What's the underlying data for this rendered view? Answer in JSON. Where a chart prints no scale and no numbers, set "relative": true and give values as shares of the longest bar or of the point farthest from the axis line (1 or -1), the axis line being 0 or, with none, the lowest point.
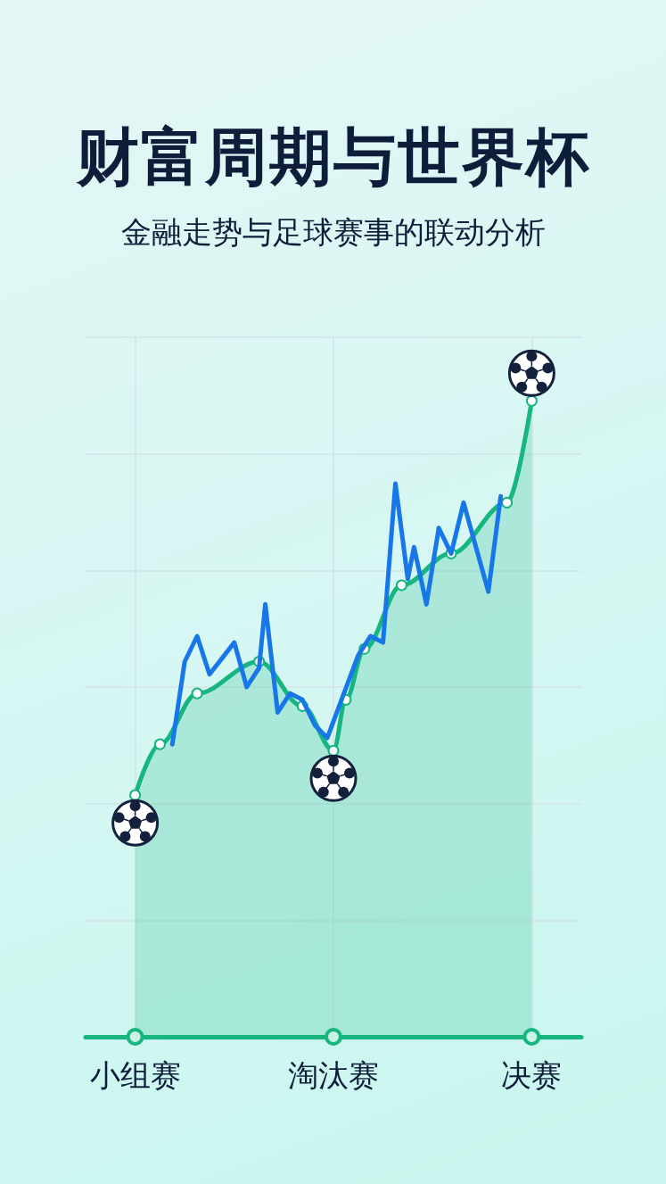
{
  "chart_data": {
    "type": "line",
    "title": "财富周期与世界杯",
    "subtitle": "金融走势与足球赛事的联动分析",
    "relative": true,
    "grid": true,
    "categories": [
      null,
      null,
      null,
      null,
      null,
      null,
      null,
      null,
      "小组赛",
      null,
      null,
      null,
      null,
      null,
      null,
      null,
      null,
      null,
      null,
      null,
      null,
      null,
      null,
      null,
      null,
      null,
      null,
      null,
      null,
      null,
      null,
      null,
      null,
      null,
      null,
      null,
      null,
      null,
      null,
      null,
      "淘汰赛",
      null,
      null,
      null,
      null,
      null,
      null,
      null,
      null,
      null,
      null,
      null,
      null,
      null,
      null,
      null,
      null,
      null,
      null,
      null,
      null,
      null,
      null,
      null,
      null,
      null,
      null,
      null,
      null,
      null,
      null,
      null,
      "决赛",
      null,
      null,
      null,
      null,
      null,
      null,
      null,
      null
    ],
    "series": [
      {
        "type": "area",
        "color": "#17b57f",
        "marker": "circle",
        "values": [
          null,
          null,
          null,
          null,
          null,
          null,
          null,
          null,
          0.38,
          null,
          null,
          null,
          0.46,
          null,
          null,
          null,
          null,
          null,
          0.54,
          null,
          null,
          null,
          null,
          null,
          null,
          null,
          null,
          null,
          0.59,
          null,
          null,
          null,
          null,
          null,
          null,
          0.52,
          null,
          null,
          null,
          null,
          0.45,
          null,
          0.53,
          null,
          null,
          0.61,
          null,
          null,
          null,
          null,
          null,
          0.71,
          null,
          null,
          null,
          null,
          null,
          null,
          null,
          0.76,
          null,
          null,
          null,
          null,
          null,
          null,
          null,
          null,
          0.84,
          null,
          null,
          null,
          1,
          null,
          null,
          null,
          null,
          null,
          null,
          null,
          null
        ]
      },
      {
        "type": "line",
        "color": "#1877e8",
        "marker": "none",
        "values": [
          null,
          null,
          null,
          null,
          null,
          null,
          null,
          null,
          null,
          null,
          null,
          null,
          null,
          null,
          0.46,
          null,
          0.59,
          null,
          0.63,
          null,
          0.57,
          null,
          null,
          null,
          0.62,
          null,
          0.55,
          null,
          0.58,
          0.68,
          null,
          0.51,
          null,
          0.54,
          null,
          0.53,
          null,
          0.49,
          null,
          0.47,
          null,
          null,
          null,
          null,
          0.6,
          null,
          0.63,
          null,
          0.62,
          null,
          0.87,
          null,
          0.72,
          0.77,
          null,
          0.68,
          null,
          0.8,
          null,
          0.76,
          null,
          0.84,
          null,
          null,
          null,
          0.7,
          null,
          0.85,
          null,
          null,
          null,
          null,
          null,
          null,
          null,
          null,
          null,
          null,
          null,
          null,
          null
        ]
      }
    ]
  }
}
